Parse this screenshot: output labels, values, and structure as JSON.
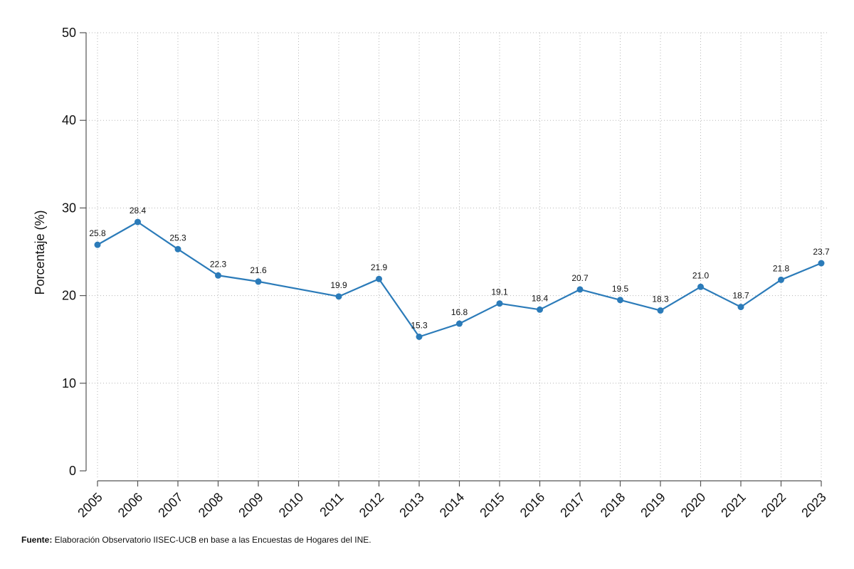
{
  "chart_data": {
    "type": "line",
    "title": "",
    "xlabel": "",
    "ylabel": "Porcentaje (%)",
    "ylim": [
      0,
      50
    ],
    "yticks": [
      0,
      10,
      20,
      30,
      40,
      50
    ],
    "grid": true,
    "x": [
      "2005",
      "2006",
      "2007",
      "2008",
      "2009",
      "2010",
      "2011",
      "2012",
      "2013",
      "2014",
      "2015",
      "2016",
      "2017",
      "2018",
      "2019",
      "2020",
      "2021",
      "2022",
      "2023"
    ],
    "series": [
      {
        "color": "#2b7bb9",
        "points": [
          {
            "x": "2005",
            "y": 25.8,
            "label": "25.8"
          },
          {
            "x": "2006",
            "y": 28.4,
            "label": "28.4"
          },
          {
            "x": "2007",
            "y": 25.3,
            "label": "25.3"
          },
          {
            "x": "2008",
            "y": 22.3,
            "label": "22.3"
          },
          {
            "x": "2009",
            "y": 21.6,
            "label": "21.6"
          },
          {
            "x": "2011",
            "y": 19.9,
            "label": "19.9"
          },
          {
            "x": "2012",
            "y": 21.9,
            "label": "21.9"
          },
          {
            "x": "2013",
            "y": 15.3,
            "label": "15.3"
          },
          {
            "x": "2014",
            "y": 16.8,
            "label": "16.8"
          },
          {
            "x": "2015",
            "y": 19.1,
            "label": "19.1"
          },
          {
            "x": "2016",
            "y": 18.4,
            "label": "18.4"
          },
          {
            "x": "2017",
            "y": 20.7,
            "label": "20.7"
          },
          {
            "x": "2018",
            "y": 19.5,
            "label": "19.5"
          },
          {
            "x": "2019",
            "y": 18.3,
            "label": "18.3"
          },
          {
            "x": "2020",
            "y": 21.0,
            "label": "21.0"
          },
          {
            "x": "2021",
            "y": 18.7,
            "label": "18.7"
          },
          {
            "x": "2022",
            "y": 21.8,
            "label": "21.8"
          },
          {
            "x": "2023",
            "y": 23.7,
            "label": "23.7"
          }
        ]
      }
    ]
  },
  "footer": {
    "source_label": "Fuente:",
    "source_text": " Elaboración Observatorio IISEC-UCB en base a las Encuestas de Hogares del INE."
  }
}
